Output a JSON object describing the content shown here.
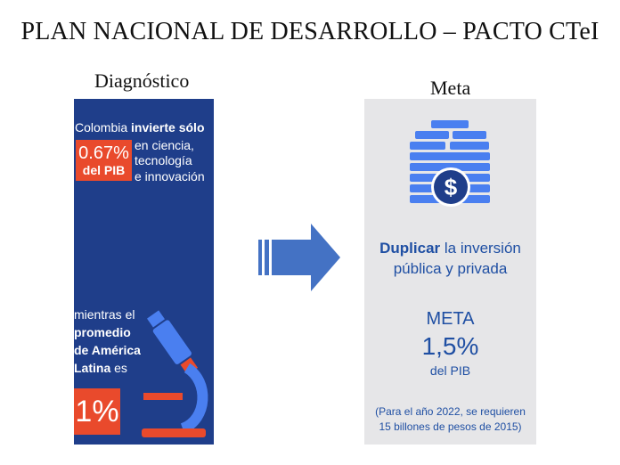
{
  "title": "PLAN NACIONAL DE DESARROLLO – PACTO CTeI",
  "diagnostico": {
    "label": "Diagnóstico",
    "line1_normal": "Colombia ",
    "line1_bold": "invierte sólo",
    "pct_value": "0.67%",
    "pct_unit": "del PIB",
    "line2": "en ciencia,",
    "line3": "tecnología",
    "line4": "e innovación",
    "mientras_line1": "mientras el",
    "mientras_line2": "promedio",
    "mientras_line3": "de América",
    "mientras_line4_bold": "Latina",
    "mientras_line4_normal": " es",
    "latam_value": "1%",
    "icon": "microscope-icon"
  },
  "meta": {
    "label": "Meta",
    "icon": "money-coins-icon",
    "dup_bold": "Duplicar",
    "dup_rest": " la inversión",
    "dup_line2": "pública y privada",
    "meta_word": "META",
    "meta_value": "1,5%",
    "meta_unit": "del PIB",
    "note_line1": "(Para el año 2022, se requieren",
    "note_line2": "15 billones de pesos de 2015)"
  },
  "colors": {
    "panel_blue": "#1f3e8a",
    "accent_orange": "#e94a2c",
    "panel_gray": "#e6e6e8",
    "text_blue": "#1f4fa3",
    "arrow_blue": "#4472c4"
  }
}
